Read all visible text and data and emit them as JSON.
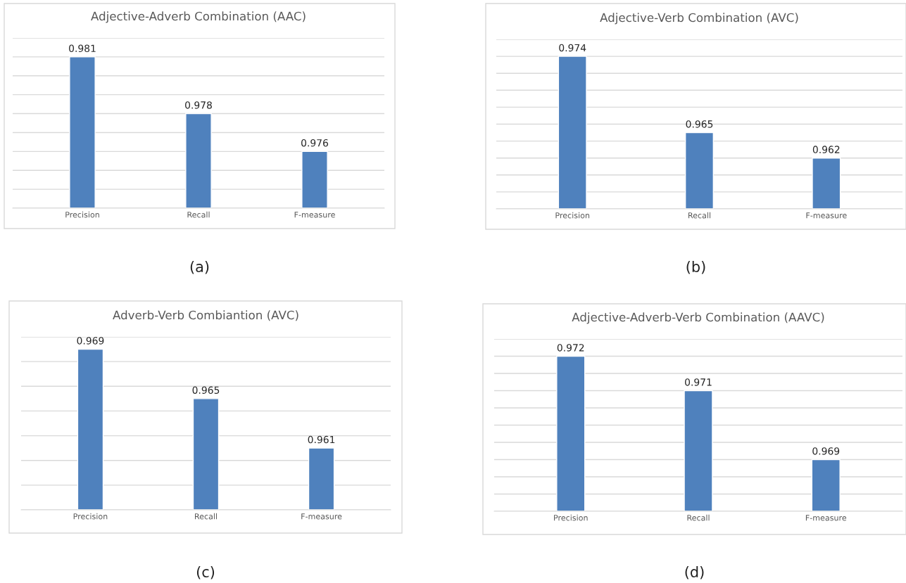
{
  "chart_data": [
    {
      "type": "bar",
      "title": "Adjective-Adverb Combination (AAC)",
      "categories": [
        "Precision",
        "Recall",
        "F-measure"
      ],
      "values": [
        0.981,
        0.978,
        0.976
      ],
      "color": "#4f81bd",
      "data_labels": true,
      "grid": "y",
      "tick_labels": "x",
      "ylim": [
        0.973,
        0.982
      ],
      "yticks": [
        {
          "value": 0.973,
          "label": null
        },
        {
          "value": 0.974,
          "label": null
        },
        {
          "value": 0.975,
          "label": null
        },
        {
          "value": 0.976,
          "label": null
        },
        {
          "value": 0.977,
          "label": null
        },
        {
          "value": 0.978,
          "label": null
        },
        {
          "value": 0.979,
          "label": null
        },
        {
          "value": 0.98,
          "label": null
        },
        {
          "value": 0.981,
          "label": null
        },
        {
          "value": 0.982,
          "label": null
        }
      ],
      "annotations": [
        "(a)"
      ]
    },
    {
      "type": "bar",
      "title": "Adjective-Verb Combination (AVC)",
      "categories": [
        "Precision",
        "Recall",
        "F-measure"
      ],
      "values": [
        0.974,
        0.965,
        0.962
      ],
      "color": "#4f81bd",
      "data_labels": true,
      "grid": "y",
      "tick_labels": "x",
      "ylim": [
        0.956,
        0.976
      ],
      "yticks": [
        {
          "value": 0.956,
          "label": null
        },
        {
          "value": 0.958,
          "label": null
        },
        {
          "value": 0.96,
          "label": null
        },
        {
          "value": 0.962,
          "label": null
        },
        {
          "value": 0.964,
          "label": null
        },
        {
          "value": 0.966,
          "label": null
        },
        {
          "value": 0.968,
          "label": null
        },
        {
          "value": 0.97,
          "label": null
        },
        {
          "value": 0.972,
          "label": null
        },
        {
          "value": 0.974,
          "label": null
        },
        {
          "value": 0.976,
          "label": null
        }
      ],
      "annotations": [
        "(b)"
      ]
    },
    {
      "type": "bar",
      "title": "Adverb-Verb Combiantion (AVC)",
      "categories": [
        "Precision",
        "Recall",
        "F-measure"
      ],
      "values": [
        0.969,
        0.965,
        0.961
      ],
      "color": "#4f81bd",
      "data_labels": true,
      "grid": "y",
      "tick_labels": "x",
      "ylim": [
        0.956,
        0.97
      ],
      "yticks": [
        {
          "value": 0.956,
          "label": null
        },
        {
          "value": 0.958,
          "label": null
        },
        {
          "value": 0.96,
          "label": null
        },
        {
          "value": 0.962,
          "label": null
        },
        {
          "value": 0.964,
          "label": null
        },
        {
          "value": 0.966,
          "label": null
        },
        {
          "value": 0.968,
          "label": null
        },
        {
          "value": 0.97,
          "label": null
        }
      ],
      "annotations": [
        "(c)"
      ]
    },
    {
      "type": "bar",
      "title": "Adjective-Adverb-Verb Combination (AAVC)",
      "categories": [
        "Precision",
        "Recall",
        "F-measure"
      ],
      "values": [
        0.972,
        0.971,
        0.969
      ],
      "color": "#4f81bd",
      "data_labels": true,
      "grid": "y",
      "tick_labels": "x",
      "ylim": [
        0.9675,
        0.9725
      ],
      "yticks": [
        {
          "value": 0.9675,
          "label": null
        },
        {
          "value": 0.968,
          "label": null
        },
        {
          "value": 0.9685,
          "label": null
        },
        {
          "value": 0.969,
          "label": null
        },
        {
          "value": 0.9695,
          "label": null
        },
        {
          "value": 0.97,
          "label": null
        },
        {
          "value": 0.9705,
          "label": null
        },
        {
          "value": 0.971,
          "label": null
        },
        {
          "value": 0.9715,
          "label": null
        },
        {
          "value": 0.972,
          "label": null
        },
        {
          "value": 0.9725,
          "label": null
        }
      ],
      "annotations": [
        "(d)"
      ]
    }
  ]
}
